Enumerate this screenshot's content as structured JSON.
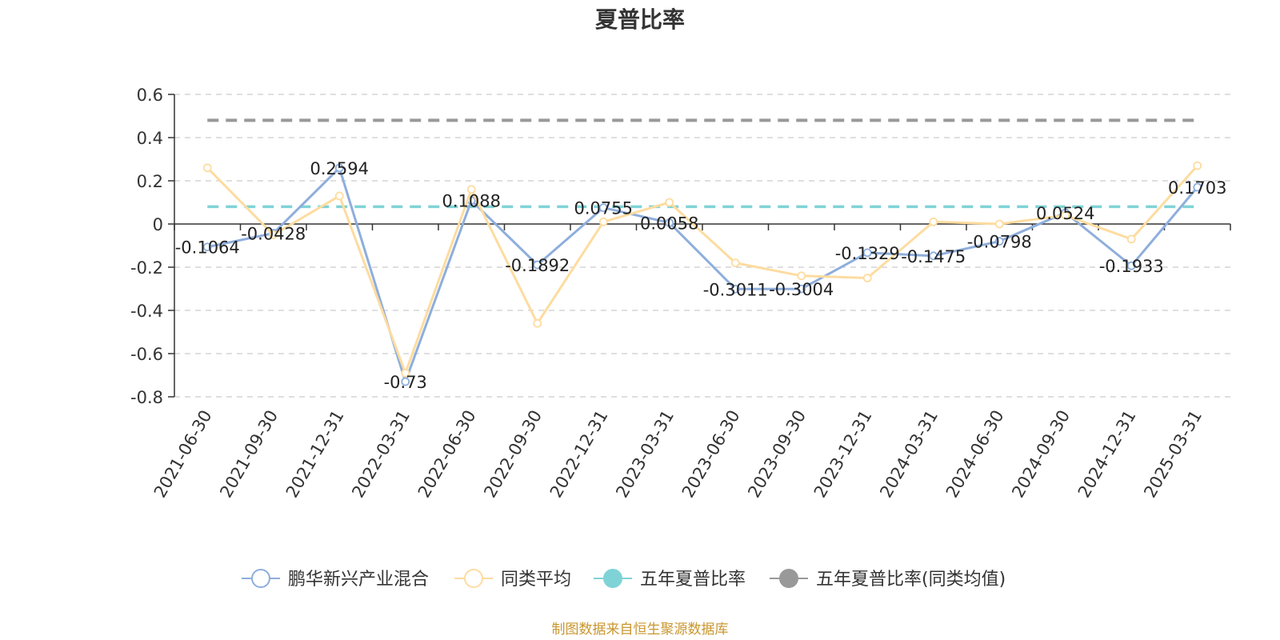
{
  "colors": {
    "fund": "#8eaedc",
    "peer": "#fddca0",
    "five_year": "#7fd3d6",
    "five_year_peer": "#999999",
    "axis": "#333333",
    "grid": "#cccccc",
    "title": "#333333",
    "source": "#c9962e"
  },
  "chart_data": {
    "type": "line",
    "title": "夏普比率",
    "categories": [
      "2021-06-30",
      "2021-09-30",
      "2021-12-31",
      "2022-03-31",
      "2022-06-30",
      "2022-09-30",
      "2022-12-31",
      "2023-03-31",
      "2023-06-30",
      "2023-09-30",
      "2023-12-31",
      "2024-03-31",
      "2024-06-30",
      "2024-09-30",
      "2024-12-31",
      "2025-03-31"
    ],
    "ylim": [
      -0.8,
      0.6
    ],
    "yticks": [
      0.6,
      0.4,
      0.2,
      0,
      -0.2,
      -0.4,
      -0.6,
      -0.8
    ],
    "grid": true,
    "legend_position": "bottom",
    "series": [
      {
        "name": "鹏华新兴产业混合",
        "values": [
          -0.1064,
          -0.0428,
          0.2594,
          -0.73,
          0.1088,
          -0.1892,
          0.0755,
          0.0058,
          -0.3011,
          -0.3004,
          -0.1329,
          -0.1475,
          -0.0798,
          0.0524,
          -0.1933,
          0.1703
        ],
        "data_labels": [
          "-0.1064",
          "-0.0428",
          "0.2594",
          "-0.73",
          "0.1088",
          "-0.1892",
          "0.0755",
          "0.0058",
          "-0.3011",
          "-0.3004",
          "-0.1329",
          "-0.1475",
          "-0.0798",
          "0.0524",
          "-0.1933",
          "0.1703"
        ]
      },
      {
        "name": "同类平均",
        "values": [
          0.26,
          -0.05,
          0.13,
          -0.69,
          0.16,
          -0.46,
          0.01,
          0.1,
          -0.18,
          -0.24,
          -0.25,
          0.01,
          0.0,
          0.04,
          -0.07,
          0.27
        ]
      },
      {
        "name": "五年夏普比率",
        "values": [
          0.08,
          0.08,
          0.08,
          0.08,
          0.08,
          0.08,
          0.08,
          0.08,
          0.08,
          0.08,
          0.08,
          0.08,
          0.08,
          0.08,
          0.08,
          0.08
        ]
      },
      {
        "name": "五年夏普比率(同类均值)",
        "values": [
          0.48,
          0.48,
          0.48,
          0.48,
          0.48,
          0.48,
          0.48,
          0.48,
          0.48,
          0.48,
          0.48,
          0.48,
          0.48,
          0.48,
          0.48,
          0.48
        ]
      }
    ],
    "source": "制图数据来自恒生聚源数据库"
  }
}
